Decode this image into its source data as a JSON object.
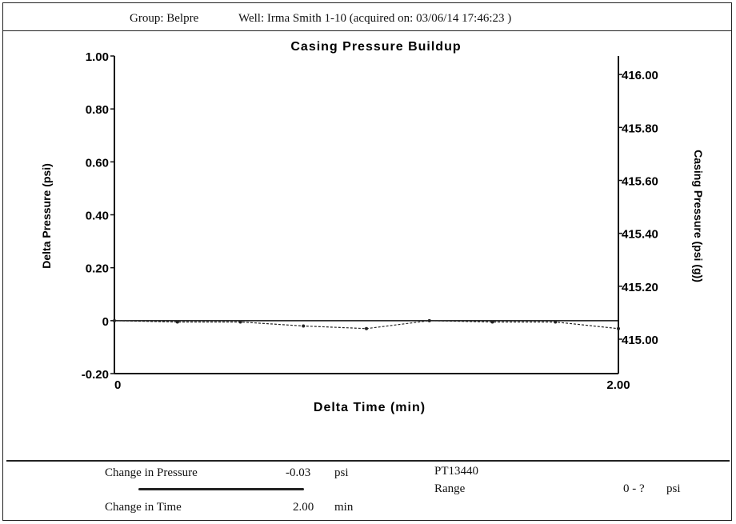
{
  "header": {
    "group": "Group: Belpre",
    "well": "Well: Irma Smith 1-10 (acquired on: 03/06/14 17:46:23 )"
  },
  "chart_data": {
    "type": "line",
    "title": "Casing Pressure Buildup",
    "xlabel": "Delta Time (min)",
    "ylabel": "Delta Pressure (psi)",
    "y2label": "Casing Pressure (psi (g))",
    "xlim": [
      0,
      2.0
    ],
    "ylim": [
      -0.2,
      1.0
    ],
    "y2lim": [
      414.87,
      416.07
    ],
    "x_ticks": [
      "0",
      "2.00"
    ],
    "y_ticks": [
      {
        "value": 1.0,
        "label": "1.00"
      },
      {
        "value": 0.8,
        "label": "0.80"
      },
      {
        "value": 0.6,
        "label": "0.60"
      },
      {
        "value": 0.4,
        "label": "0.40"
      },
      {
        "value": 0.2,
        "label": "0.20"
      },
      {
        "value": 0.0,
        "label": "0"
      },
      {
        "value": -0.2,
        "label": "-0.20"
      }
    ],
    "y2_ticks": [
      {
        "value": 416.0,
        "label": "416.00"
      },
      {
        "value": 415.8,
        "label": "415.80"
      },
      {
        "value": 415.6,
        "label": "415.60"
      },
      {
        "value": 415.4,
        "label": "415.40"
      },
      {
        "value": 415.2,
        "label": "415.20"
      },
      {
        "value": 415.0,
        "label": "415.00"
      }
    ],
    "series": [
      {
        "x": [
          0,
          0.25,
          0.5,
          0.75,
          1.0,
          1.25,
          1.5,
          1.75,
          2.0
        ],
        "values": [
          0,
          -0.005,
          -0.005,
          -0.02,
          -0.03,
          0,
          -0.005,
          -0.005,
          -0.03
        ]
      }
    ]
  },
  "footer": {
    "change_pressure_label": "Change in Pressure",
    "change_pressure_value": "-0.03",
    "change_pressure_unit": "psi",
    "change_time_label": "Change in Time",
    "change_time_value": "2.00",
    "change_time_unit": "min",
    "gauge_id": "PT13440",
    "range_label": "Range",
    "range_value": "0 - ?",
    "range_unit": "psi"
  }
}
